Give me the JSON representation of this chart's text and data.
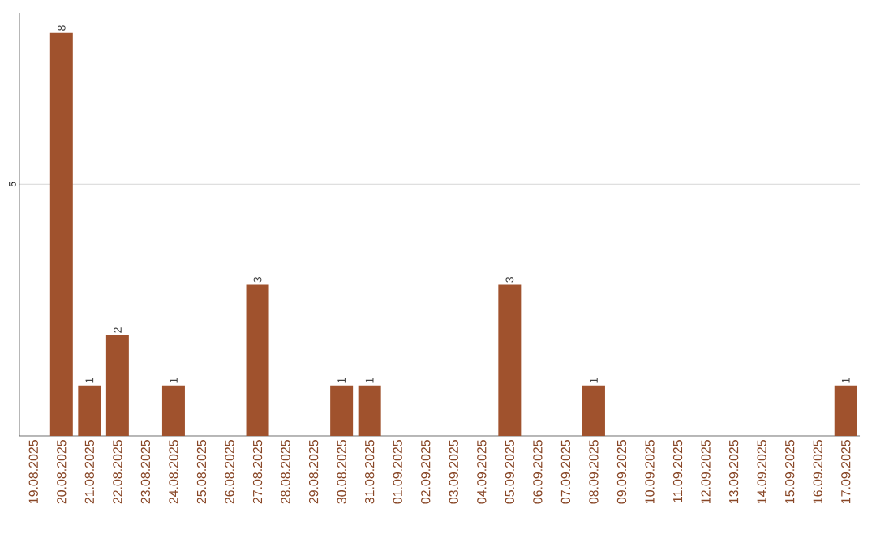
{
  "chart_data": {
    "type": "bar",
    "categories": [
      "19.08.2025",
      "20.08.2025",
      "21.08.2025",
      "22.08.2025",
      "23.08.2025",
      "24.08.2025",
      "25.08.2025",
      "26.08.2025",
      "27.08.2025",
      "28.08.2025",
      "29.08.2025",
      "30.08.2025",
      "31.08.2025",
      "01.09.2025",
      "02.09.2025",
      "03.09.2025",
      "04.09.2025",
      "05.09.2025",
      "06.09.2025",
      "07.09.2025",
      "08.09.2025",
      "09.09.2025",
      "10.09.2025",
      "11.09.2025",
      "12.09.2025",
      "13.09.2025",
      "14.09.2025",
      "15.09.2025",
      "16.09.2025",
      "17.09.2025"
    ],
    "values": [
      0,
      8,
      1,
      2,
      0,
      1,
      0,
      0,
      3,
      0,
      0,
      1,
      1,
      0,
      0,
      0,
      0,
      3,
      0,
      0,
      1,
      0,
      0,
      0,
      0,
      0,
      0,
      0,
      0,
      1
    ],
    "value_labels": [
      null,
      "8",
      "1",
      "2",
      null,
      "1",
      null,
      null,
      "3",
      null,
      null,
      "1",
      "1",
      null,
      null,
      null,
      null,
      "3",
      null,
      null,
      "1",
      null,
      null,
      null,
      null,
      null,
      null,
      null,
      null,
      "1"
    ],
    "color": "#a0522d",
    "ylim": [
      0,
      8.4
    ],
    "yticks": [
      5
    ],
    "grid": "y"
  }
}
